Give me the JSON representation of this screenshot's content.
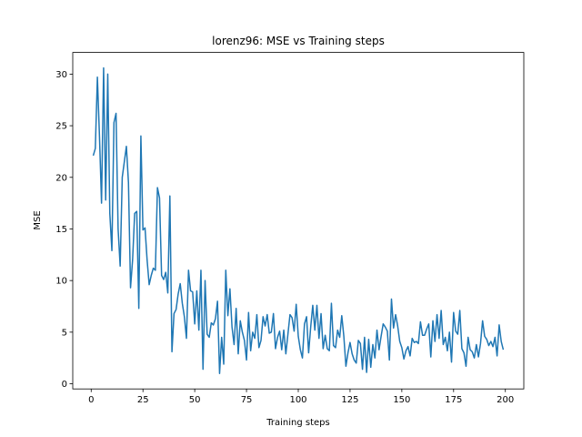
{
  "chart_data": {
    "type": "line",
    "title": "lorenz96: MSE vs Training steps",
    "x_label": "Training steps",
    "y_label": "MSE",
    "color": "#1f77b4",
    "x": [
      1,
      2,
      3,
      4,
      5,
      6,
      7,
      8,
      9,
      10,
      11,
      12,
      13,
      14,
      15,
      16,
      17,
      18,
      19,
      20,
      21,
      22,
      23,
      24,
      25,
      26,
      27,
      28,
      29,
      30,
      31,
      32,
      33,
      34,
      35,
      36,
      37,
      38,
      39,
      40,
      41,
      42,
      43,
      44,
      45,
      46,
      47,
      48,
      49,
      50,
      51,
      52,
      53,
      54,
      55,
      56,
      57,
      58,
      59,
      60,
      61,
      62,
      63,
      64,
      65,
      66,
      67,
      68,
      69,
      70,
      71,
      72,
      73,
      74,
      75,
      76,
      77,
      78,
      79,
      80,
      81,
      82,
      83,
      84,
      85,
      86,
      87,
      88,
      89,
      90,
      91,
      92,
      93,
      94,
      95,
      96,
      97,
      98,
      99,
      100,
      101,
      102,
      103,
      104,
      105,
      106,
      107,
      108,
      109,
      110,
      111,
      112,
      113,
      114,
      115,
      116,
      117,
      118,
      119,
      120,
      121,
      122,
      123,
      124,
      125,
      126,
      127,
      128,
      129,
      130,
      131,
      132,
      133,
      134,
      135,
      136,
      137,
      138,
      139,
      140,
      141,
      142,
      143,
      144,
      145,
      146,
      147,
      148,
      149,
      150,
      151,
      152,
      153,
      154,
      155,
      156,
      157,
      158,
      159,
      160,
      161,
      162,
      163,
      164,
      165,
      166,
      167,
      168,
      169,
      170,
      171,
      172,
      173,
      174,
      175,
      176,
      177,
      178,
      179,
      180,
      181,
      182,
      183,
      184,
      185,
      186,
      187,
      188,
      189,
      190,
      191,
      192,
      193,
      194,
      195,
      196,
      197,
      198,
      199
    ],
    "values": [
      22.1,
      22.8,
      29.7,
      24,
      17.5,
      30.6,
      17.8,
      30,
      16.5,
      12.9,
      25.3,
      26.2,
      15,
      11.4,
      20,
      21.5,
      23,
      19.5,
      9.3,
      12,
      16.5,
      16.7,
      7.3,
      24,
      14.9,
      15.1,
      12,
      9.6,
      10.5,
      11.2,
      11,
      19,
      18,
      10.5,
      10.1,
      10.8,
      8.8,
      18.2,
      3.1,
      6.8,
      7.2,
      8.7,
      9.7,
      7.8,
      6.5,
      4.4,
      11,
      9,
      8.9,
      5.8,
      9,
      5.2,
      11,
      1.4,
      10,
      4.8,
      4.5,
      5.9,
      5.7,
      6.3,
      8,
      1,
      4.5,
      1.9,
      11,
      6.6,
      9.2,
      5.5,
      3.8,
      7.3,
      2.9,
      6.1,
      5,
      4.2,
      2.3,
      6.9,
      3.2,
      5,
      4.4,
      6.7,
      3.5,
      4.2,
      6.5,
      5.6,
      6.7,
      4.9,
      5,
      6.8,
      3.4,
      4.5,
      5.1,
      3.3,
      5.2,
      2.9,
      4.8,
      6.7,
      6.4,
      5.1,
      7.7,
      4.6,
      3.3,
      2.5,
      5.8,
      6.5,
      3,
      5.5,
      7.6,
      5.2,
      7.6,
      4.4,
      6.8,
      3.4,
      4.7,
      3.4,
      3.2,
      7.8,
      3.7,
      3.5,
      5.2,
      4.5,
      6.6,
      4.6,
      1.7,
      3,
      4,
      2.9,
      2.3,
      2,
      4.2,
      3.9,
      1.4,
      4.5,
      1.1,
      4.3,
      1.6,
      3.8,
      2.5,
      5.2,
      3.3,
      4.6,
      5.8,
      5.5,
      5.1,
      2.3,
      8.2,
      5.4,
      6.7,
      5.6,
      4.1,
      3.5,
      2.4,
      3.2,
      3.6,
      2.7,
      4.4,
      4,
      4.1,
      3.9,
      6,
      4.7,
      4.7,
      5.3,
      5.8,
      2.6,
      6.1,
      4.1,
      6.7,
      4.4,
      7.1,
      3.8,
      4.5,
      3.2,
      5,
      2.1,
      6.9,
      5.1,
      4.8,
      7.1,
      3.4,
      3,
      1.7,
      4.5,
      3.3,
      3.1,
      2.5,
      3.8,
      2.6,
      3.9,
      6.1,
      4.6,
      4.3,
      3.7,
      4.1,
      3.6,
      4.5,
      2.7,
      5.7,
      4.1,
      3.3
    ],
    "xlim": [
      -8.9,
      208.9
    ],
    "xticks": [
      0,
      25,
      50,
      75,
      100,
      125,
      150,
      175,
      200
    ],
    "ylim": [
      -0.5,
      32.1
    ],
    "yticks": [
      0,
      5,
      10,
      15,
      20,
      25,
      30
    ],
    "grid": false
  }
}
